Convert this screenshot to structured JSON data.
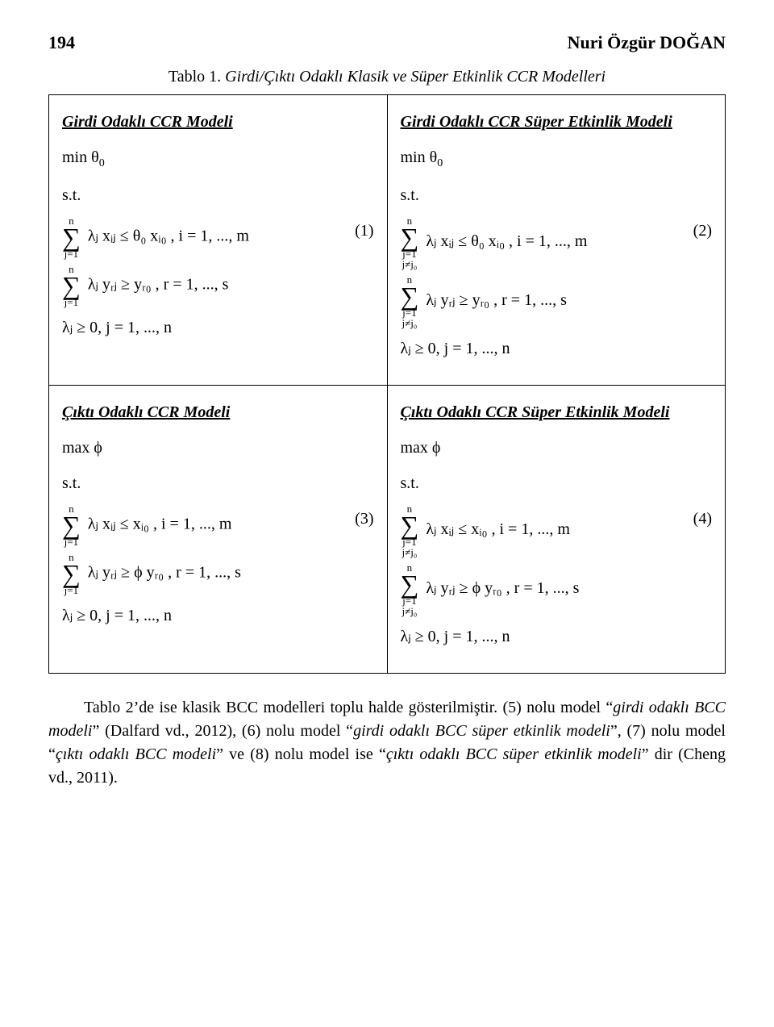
{
  "header": {
    "page_number": "194",
    "author": "Nuri Özgür DOĞAN"
  },
  "table_caption": {
    "label": "Tablo 1.",
    "title": "Girdi/Çıktı Odaklı Klasik ve Süper Etkinlik CCR Modelleri"
  },
  "cells": {
    "c1": {
      "title": "Girdi Odaklı CCR Modeli",
      "obj": "min θ",
      "obj_sub": "0",
      "st": "s.t.",
      "eq1_num": "(1)"
    },
    "c2": {
      "title": "Girdi Odaklı CCR Süper Etkinlik Modeli",
      "obj": "min θ",
      "obj_sub": "0",
      "st": "s.t.",
      "eq1_num": "(2)"
    },
    "c3": {
      "title": "Çıktı Odaklı CCR Modeli",
      "obj": "max ϕ",
      "st": "s.t.",
      "eq1_num": "(3)"
    },
    "c4": {
      "title": "Çıktı Odaklı CCR Süper Etkinlik Modeli",
      "obj": "max ϕ",
      "st": "s.t.",
      "eq1_num": "(4)"
    },
    "common": {
      "sum_upper": "n",
      "sum_lower_plain": "j=1",
      "sum_lower_ne": "j=1\nj≠j₀",
      "ineq_x_theta": "λⱼ xᵢⱼ ≤ θ₀ xᵢ₀ ,  i = 1, ..., m",
      "ineq_x_plain": "λⱼ xᵢⱼ ≤ xᵢ₀ ,  i = 1, ..., m",
      "ineq_y_plain": "λⱼ yᵣⱼ ≥ yᵣ₀ ,  r = 1, ..., s",
      "ineq_y_phi": "λⱼ yᵣⱼ ≥ ϕ yᵣ₀ ,  r = 1, ..., s",
      "lambda_nn": "λⱼ ≥ 0,  j = 1, ..., n"
    }
  },
  "paragraph": {
    "p1": "Tablo 2’de ise klasik BCC modelleri toplu halde gösterilmiştir. (5) nolu model “",
    "it1": "girdi odaklı BCC modeli",
    "p2": "” (Dalfard vd., 2012), (6) nolu model “",
    "it2": "girdi odaklı BCC süper etkinlik modeli",
    "p3": "”, (7) nolu model “",
    "it3": "çıktı odaklı BCC modeli",
    "p4": "” ve (8) nolu model ise “",
    "it4": "çıktı odaklı BCC süper etkinlik modeli",
    "p5": "” dir (Cheng vd., 2011)."
  }
}
